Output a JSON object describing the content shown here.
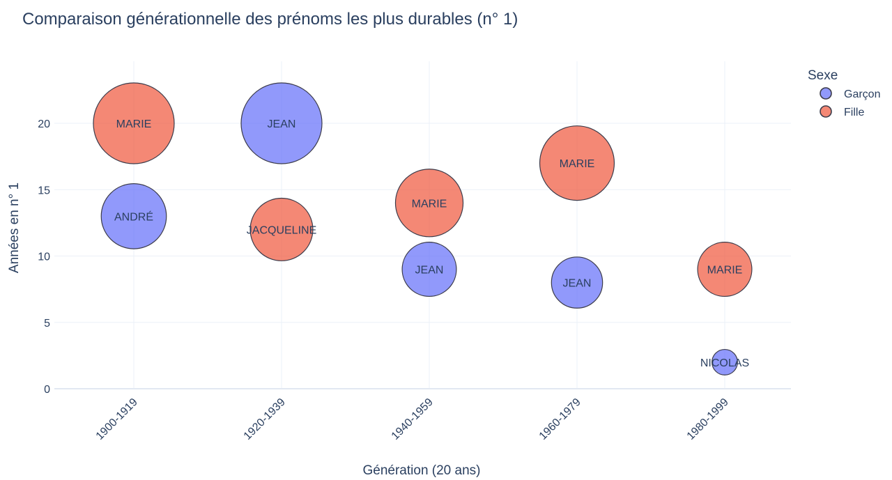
{
  "chart_data": {
    "type": "scatter",
    "title": "Comparaison générationnelle des prénoms les plus durables (n° 1)",
    "xlabel": "Génération (20 ans)",
    "ylabel": "Années en n° 1",
    "categories": [
      "1900-1919",
      "1920-1939",
      "1940-1959",
      "1960-1979",
      "1980-1999"
    ],
    "ylim": [
      0,
      24
    ],
    "yticks": [
      0,
      5,
      10,
      15,
      20
    ],
    "grid": true,
    "legend": {
      "title": "Sexe",
      "placement": "top-right"
    },
    "series": [
      {
        "name": "Garçon",
        "color": "#636efa",
        "points": [
          {
            "x": "1900-1919",
            "y": 13,
            "label": "ANDRÉ"
          },
          {
            "x": "1920-1939",
            "y": 20,
            "label": "JEAN"
          },
          {
            "x": "1940-1959",
            "y": 9,
            "label": "JEAN"
          },
          {
            "x": "1960-1979",
            "y": 8,
            "label": "JEAN"
          },
          {
            "x": "1980-1999",
            "y": 2,
            "label": "NICOLAS"
          }
        ]
      },
      {
        "name": "Fille",
        "color": "#ef553b",
        "points": [
          {
            "x": "1900-1919",
            "y": 20,
            "label": "MARIE"
          },
          {
            "x": "1920-1939",
            "y": 12,
            "label": "JACQUELINE"
          },
          {
            "x": "1940-1959",
            "y": 14,
            "label": "MARIE"
          },
          {
            "x": "1960-1979",
            "y": 17,
            "label": "MARIE"
          },
          {
            "x": "1980-1999",
            "y": 9,
            "label": "MARIE"
          }
        ]
      }
    ]
  }
}
